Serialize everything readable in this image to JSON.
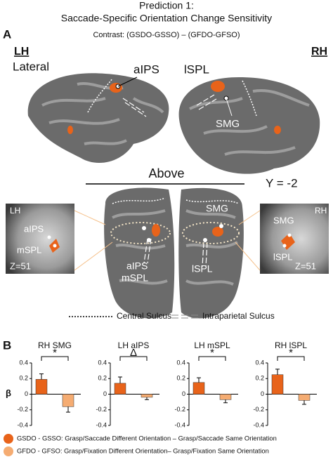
{
  "header": {
    "title": "Prediction 1:",
    "subtitle": "Saccade-Specific Orientation Change Sensitivity",
    "contrast": "Contrast: (GSDO-GSSO) – (GFDO-GFSO)"
  },
  "panel_a": {
    "label": "A",
    "lh": "LH",
    "lateral": "Lateral",
    "rh": "RH",
    "lateral_labels": [
      "aIPS",
      "lSPL",
      "SMG"
    ],
    "above": "Above",
    "slice": "Y = -2",
    "dorsal_labels": [
      "aIPS",
      "mSPL",
      "SMG",
      "lSPL"
    ],
    "left_inset": {
      "hemi": "LH",
      "labels": [
        "aIPS",
        "mSPL"
      ],
      "z": "Z=51"
    },
    "right_inset": {
      "hemi": "RH",
      "labels": [
        "SMG",
        "lSPL"
      ],
      "z": "Z=51"
    },
    "sulcus_legend": [
      "Central Sulcus",
      "Intraparietal Sulcus"
    ]
  },
  "chart_data": {
    "type": "bar",
    "label": "B",
    "ylabel": "β",
    "categories": [
      "RH SMG",
      "LH aIPS",
      "LH mSPL",
      "RH lSPL"
    ],
    "annotations": [
      "*",
      "Δ",
      "*",
      "*"
    ],
    "series": [
      {
        "name": "GSDO - GSSO: Grasp/Saccade Different Orientation – Grasp/Saccade Same Orientation",
        "color": "#e8631a",
        "values": [
          0.19,
          0.14,
          0.15,
          0.25
        ],
        "errors": [
          0.07,
          0.08,
          0.06,
          0.07
        ]
      },
      {
        "name": "GFDO - GFSO: Grasp/Fixation Different Orientation– Grasp/Fixation Same Orientation",
        "color": "#f5ac72",
        "values": [
          -0.16,
          -0.04,
          -0.07,
          -0.08
        ],
        "errors": [
          0.07,
          0.03,
          0.04,
          0.05
        ]
      }
    ],
    "ylim": [
      -0.4,
      0.4
    ],
    "yticks": [
      -0.4,
      -0.2,
      0,
      0.2,
      0.4
    ]
  }
}
